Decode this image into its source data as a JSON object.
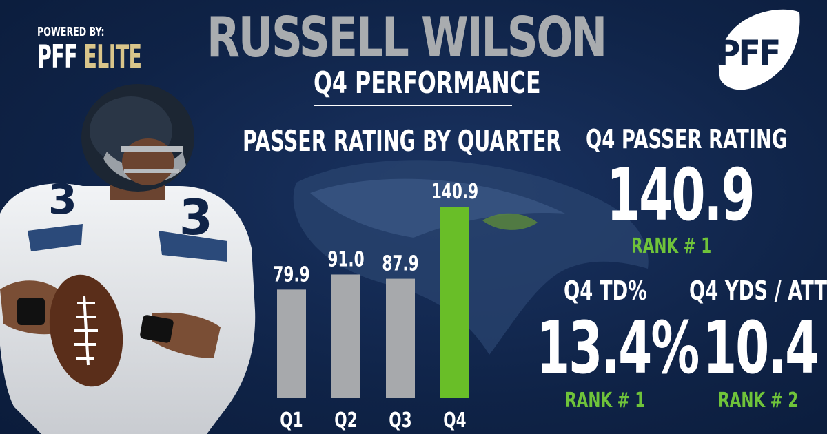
{
  "header": {
    "title": "RUSSELL WILSON",
    "subtitle": "Q4 PERFORMANCE",
    "powered_label": "POWERED BY:",
    "powered_brand": "PFF",
    "powered_brand_accent": "ELITE",
    "logo_text": "PFF"
  },
  "chart_heading": "PASSER RATING BY QUARTER",
  "chart_data": {
    "type": "bar",
    "title": "PASSER RATING BY QUARTER",
    "categories": [
      "Q1",
      "Q2",
      "Q3",
      "Q4"
    ],
    "values": [
      79.9,
      91.0,
      87.9,
      140.9
    ],
    "value_labels": [
      "79.9",
      "91.0",
      "87.9",
      "140.9"
    ],
    "highlight_index": 3,
    "colors": {
      "default": "#a7a9ac",
      "highlight": "#69be28"
    },
    "grid": false,
    "legend": "none"
  },
  "stats": {
    "passer_rating": {
      "label": "Q4 PASSER RATING",
      "value": "140.9",
      "rank": "RANK # 1"
    },
    "td_pct": {
      "label": "Q4 TD%",
      "value": "13.4%",
      "rank": "RANK # 1"
    },
    "yds_att": {
      "label": "Q4 YDS / ATT",
      "value": "10.4",
      "rank": "RANK # 2"
    }
  },
  "colors": {
    "background": "#0f2347",
    "title_gray": "#a9acaf",
    "accent_green": "#6fc33a",
    "elite_gold": "#d9c58a"
  },
  "icons": {
    "logo": "pff-football-logo",
    "emblem": "seahawks-emblem-watermark",
    "player": "player-photo"
  }
}
